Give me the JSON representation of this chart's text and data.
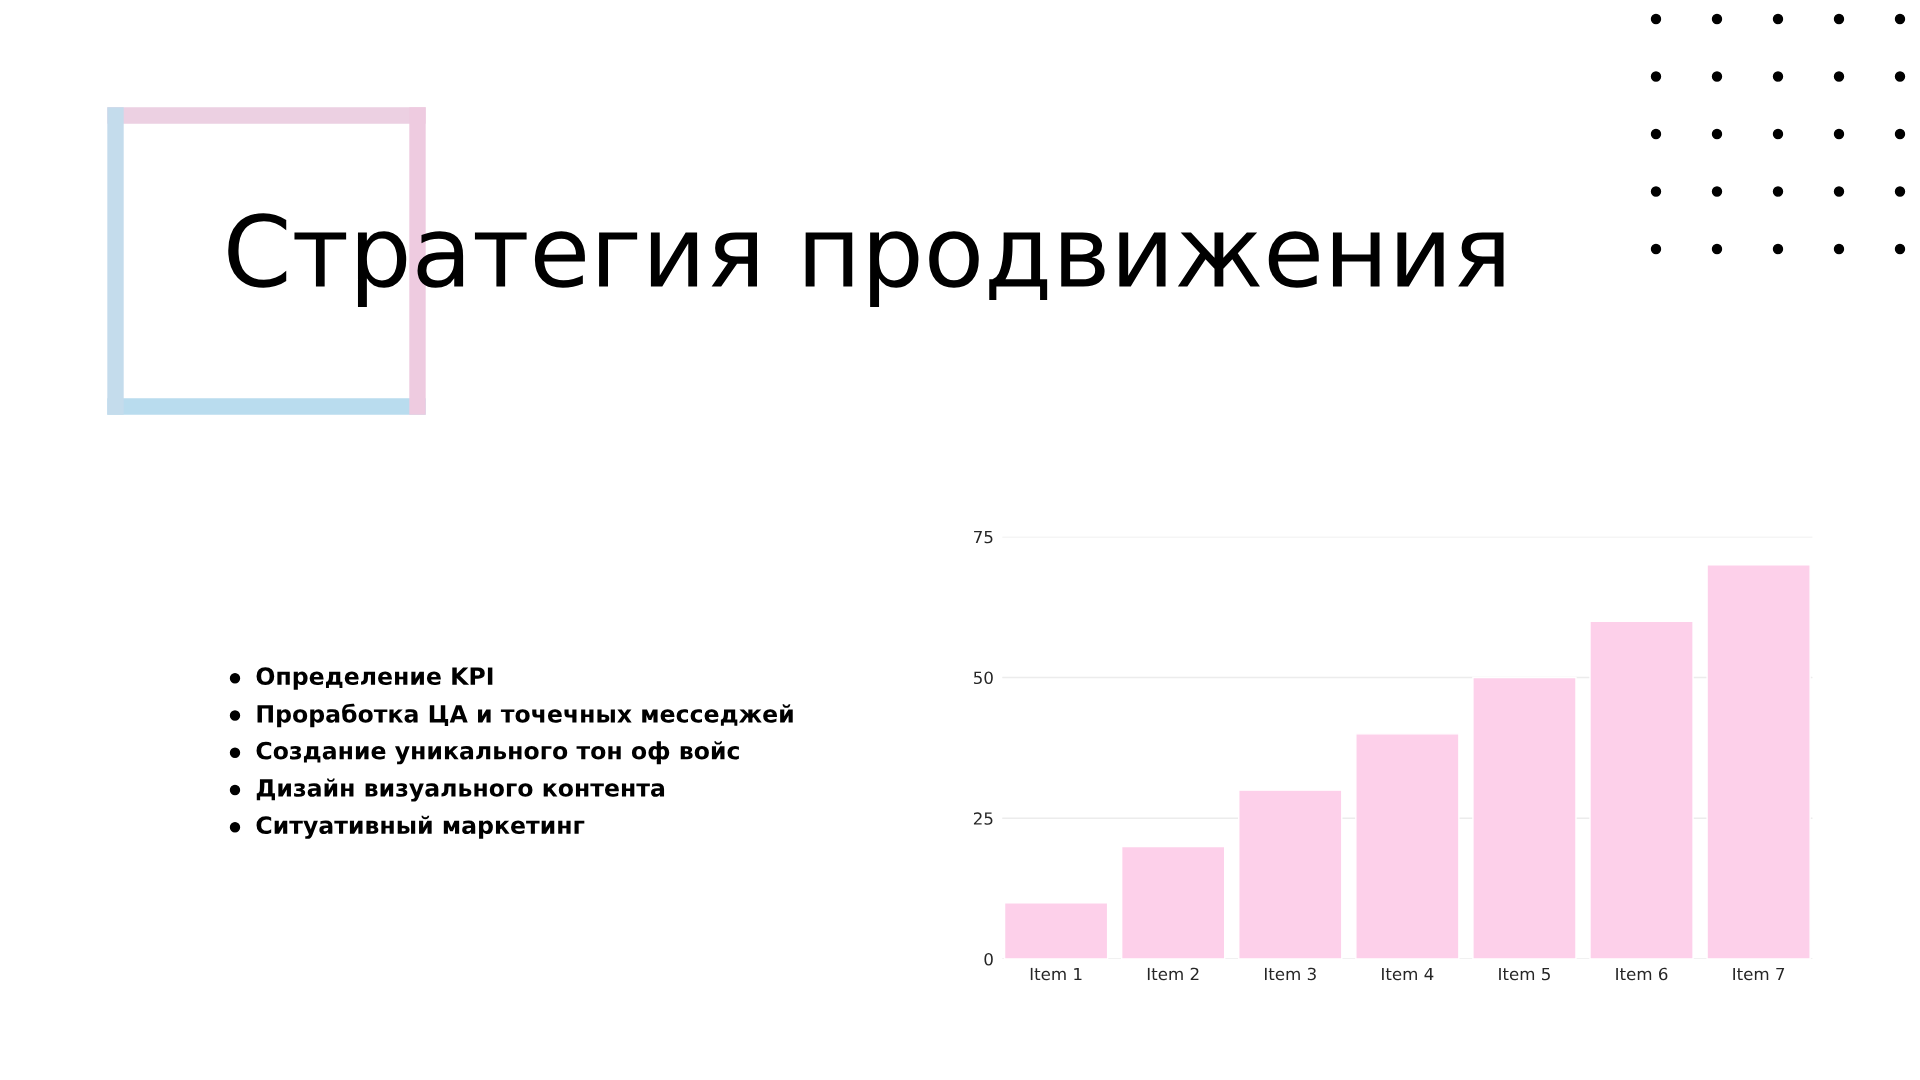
{
  "chart_data": {
    "type": "bar",
    "title": "Стратегия продвижения",
    "categories": [
      "Item 1",
      "Item 2",
      "Item 3",
      "Item 4",
      "Item 5",
      "Item 6",
      "Item 7"
    ],
    "values": [
      10,
      20,
      30,
      40,
      50,
      60,
      70
    ],
    "color": "#fdd0ea",
    "ylim": [
      0,
      75
    ],
    "yticks": [
      0,
      25,
      50,
      75
    ],
    "grid": "y",
    "annotations": [
      "Определение KPI",
      "Проработка ЦА и точечных месседжей",
      "Создание уникального тон оф войс",
      "Дизайн визуального контента",
      "Ситуативный маркетинг"
    ]
  }
}
